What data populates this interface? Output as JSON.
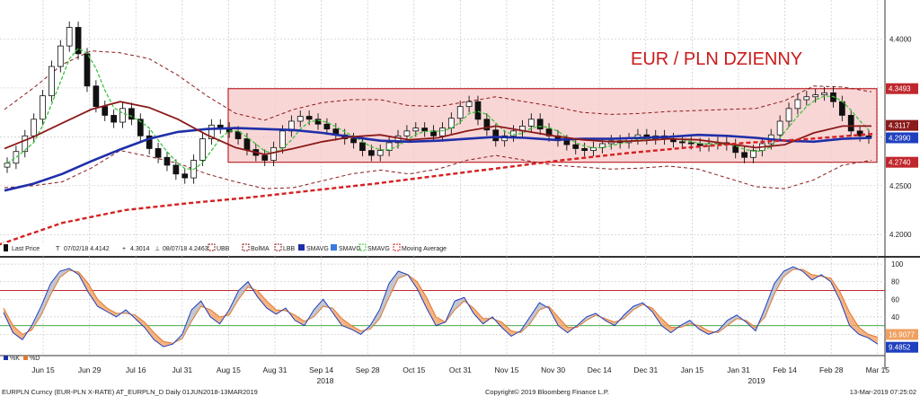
{
  "chart_data": [
    {
      "type": "candlestick",
      "title": "EUR / PLN DZIENNY",
      "ylim": [
        4.18,
        4.44
      ],
      "y_ticks": [
        "4.4000",
        "4.3500",
        "4.3000",
        "4.2500",
        "4.2000"
      ],
      "x_ticks": [
        "Jun 15",
        "Jun 29",
        "Jul 16",
        "Jul 31",
        "Aug 15",
        "Aug 31",
        "Sep 14",
        "Sep 28",
        "Oct 15",
        "Oct 31",
        "Nov 15",
        "Nov 30",
        "Dec 14",
        "Dec 31",
        "Jan 15",
        "Jan 31",
        "Feb 14",
        "Feb 28",
        "Mar 15"
      ],
      "year_labels": [
        "2018",
        "2019"
      ],
      "price_badges": [
        {
          "value": "4.3493",
          "color": "#c0272d"
        },
        {
          "value": "4.3117",
          "color": "#8b1a1a"
        },
        {
          "value": "4.2990",
          "color": "#1f3fbf"
        },
        {
          "value": "4.2740",
          "color": "#c0272d"
        }
      ],
      "range_band": {
        "from": 4.274,
        "to": 4.3493
      },
      "legend": [
        {
          "icon": "candle",
          "label": "Last Price"
        },
        {
          "icon": "t-mark",
          "label": "07/02/18 4.4142"
        },
        {
          "icon": "plus-mark",
          "label": "4.3014"
        },
        {
          "icon": "b-mark",
          "label": "08/07/18 4.2463"
        },
        {
          "icon": "dash-darkred",
          "label": "UBB"
        },
        {
          "icon": "dash-darkred",
          "label": "BolMA"
        },
        {
          "icon": "dash-darkred",
          "label": "LBB"
        },
        {
          "icon": "line-navy",
          "label": "SMAVG"
        },
        {
          "icon": "line-blue",
          "label": "SMAVG"
        },
        {
          "icon": "dash-green",
          "label": "SMAVG"
        },
        {
          "icon": "dash-red",
          "label": "Moving Average"
        }
      ],
      "series": [
        {
          "name": "Last Price",
          "values": [
            4.273,
            4.285,
            4.301,
            4.318,
            4.342,
            4.372,
            4.393,
            4.412,
            4.385,
            4.352,
            4.331,
            4.322,
            4.315,
            4.329,
            4.318,
            4.301,
            4.288,
            4.279,
            4.271,
            4.262,
            4.258,
            4.276,
            4.298,
            4.312,
            4.309,
            4.305,
            4.298,
            4.287,
            4.281,
            4.276,
            4.289,
            4.306,
            4.316,
            4.321,
            4.318,
            4.313,
            4.308,
            4.302,
            4.298,
            4.294,
            4.286,
            4.281,
            4.286,
            4.294,
            4.301,
            4.306,
            4.309,
            4.306,
            4.301,
            4.309,
            4.319,
            4.331,
            4.336,
            4.318,
            4.307,
            4.296,
            4.301,
            4.306,
            4.311,
            4.318,
            4.308,
            4.301,
            4.296,
            4.292,
            4.288,
            4.286,
            4.289,
            4.293,
            4.296,
            4.294,
            4.298,
            4.302,
            4.298,
            4.301,
            4.298,
            4.295,
            4.294,
            4.293,
            4.291,
            4.293,
            4.294,
            4.292,
            4.284,
            4.279,
            4.286,
            4.293,
            4.302,
            4.316,
            4.329,
            4.338,
            4.341,
            4.343,
            4.345,
            4.336,
            4.322,
            4.306,
            4.301,
            4.299
          ]
        }
      ],
      "overlay_series": [
        {
          "name": "SMAVG",
          "color": "#1f2fa8",
          "values": [
            4.245,
            4.252,
            4.262,
            4.275,
            4.287,
            4.298,
            4.305,
            4.308,
            4.309,
            4.308,
            4.307,
            4.304,
            4.3,
            4.296,
            4.295,
            4.296,
            4.298,
            4.3,
            4.299,
            4.297,
            4.298,
            4.298,
            4.299,
            4.3,
            4.302,
            4.301,
            4.299,
            4.296,
            4.295,
            4.298,
            4.299
          ]
        },
        {
          "name": "BolMA",
          "color": "#8b1a1a",
          "values": [
            4.288,
            4.3,
            4.314,
            4.328,
            4.336,
            4.33,
            4.318,
            4.302,
            4.289,
            4.282,
            4.288,
            4.295,
            4.3,
            4.302,
            4.297,
            4.299,
            4.306,
            4.311,
            4.306,
            4.301,
            4.297,
            4.295,
            4.296,
            4.298,
            4.297,
            4.293,
            4.289,
            4.292,
            4.304,
            4.311,
            4.311
          ]
        },
        {
          "name": "Moving Average",
          "color": "#d62020",
          "values": [
            4.19,
            4.212,
            4.225,
            4.232,
            4.238,
            4.245,
            4.252,
            4.26,
            4.268,
            4.276,
            4.283,
            4.289,
            4.294,
            4.298,
            4.303
          ]
        }
      ]
    },
    {
      "type": "line",
      "ylim": [
        0,
        100
      ],
      "y_ticks": [
        "100",
        "80",
        "60",
        "40",
        "20"
      ],
      "reference_lines": [
        70,
        30
      ],
      "legend": [
        {
          "icon": "square-navy",
          "label": "%K"
        },
        {
          "icon": "square-orange",
          "label": "%D"
        }
      ],
      "badges": [
        {
          "value": "16.9077",
          "color": "#f0a060"
        },
        {
          "value": "9.4852",
          "color": "#1f3fbf"
        }
      ],
      "series": [
        {
          "name": "%K",
          "values": [
            45,
            22,
            14,
            30,
            52,
            78,
            92,
            95,
            88,
            68,
            52,
            46,
            40,
            48,
            38,
            28,
            14,
            6,
            9,
            20,
            48,
            58,
            40,
            32,
            48,
            70,
            80,
            63,
            50,
            43,
            50,
            36,
            30,
            48,
            60,
            45,
            30,
            26,
            20,
            30,
            48,
            78,
            92,
            88,
            72,
            50,
            30,
            34,
            58,
            62,
            44,
            32,
            40,
            28,
            18,
            24,
            40,
            56,
            50,
            30,
            22,
            30,
            40,
            44,
            36,
            30,
            42,
            52,
            56,
            46,
            30,
            22,
            30,
            36,
            26,
            20,
            24,
            36,
            42,
            34,
            24,
            50,
            78,
            92,
            97,
            92,
            82,
            88,
            80,
            58,
            30,
            20,
            16,
            9
          ]
        },
        {
          "name": "%D",
          "values": [
            50,
            30,
            20,
            25,
            42,
            65,
            85,
            93,
            91,
            78,
            60,
            50,
            44,
            44,
            42,
            34,
            22,
            12,
            10,
            15,
            35,
            52,
            48,
            40,
            42,
            60,
            74,
            70,
            58,
            48,
            47,
            42,
            35,
            40,
            52,
            50,
            38,
            30,
            24,
            26,
            38,
            62,
            84,
            88,
            80,
            62,
            40,
            34,
            48,
            58,
            50,
            38,
            38,
            34,
            24,
            22,
            32,
            48,
            52,
            40,
            28,
            28,
            36,
            42,
            38,
            34,
            38,
            48,
            54,
            50,
            38,
            28,
            28,
            32,
            30,
            24,
            22,
            30,
            38,
            36,
            28,
            40,
            66,
            86,
            94,
            94,
            88,
            86,
            84,
            68,
            45,
            28,
            20,
            16.9
          ]
        }
      ]
    }
  ],
  "footer": {
    "left": "EURPLN Curncy (EUR-PLN X-RATE) AT_EURPLN_D  Daily 01JUN2018-13MAR2019",
    "center": "Copyright© 2019 Bloomberg Finance L.P.",
    "right": "13-Mar-2019 07:25:02"
  }
}
